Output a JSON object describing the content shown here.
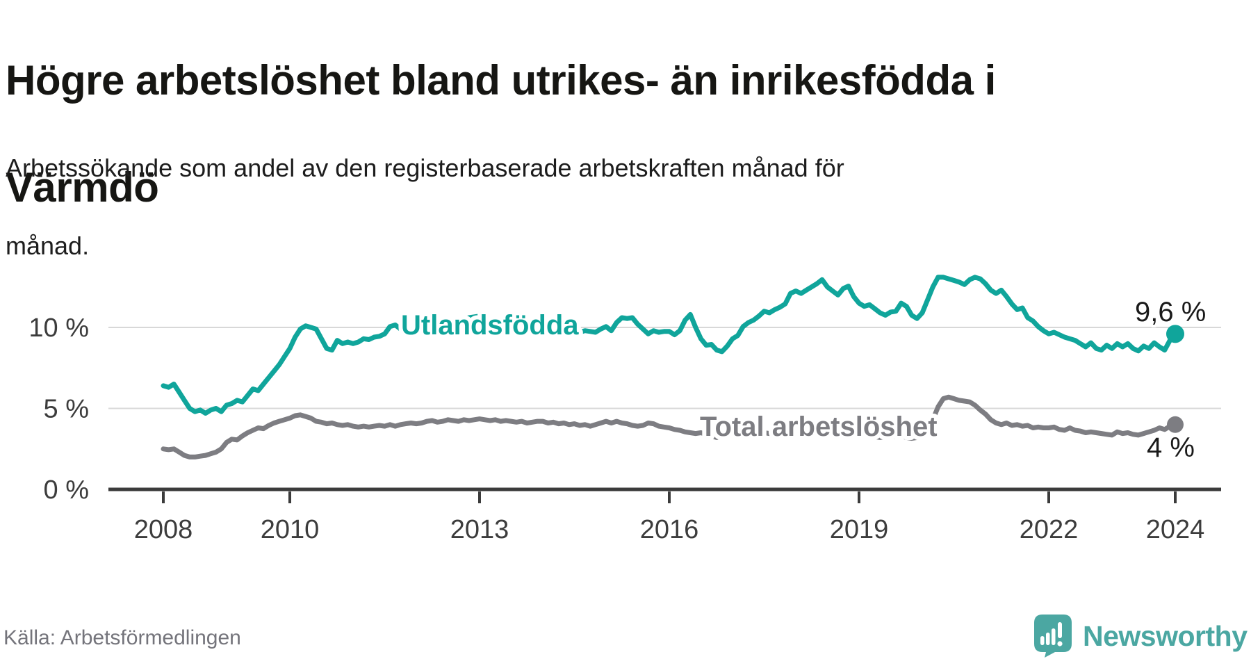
{
  "title": {
    "text": "Högre arbetslöshet bland utrikes- än inrikesfödda i Värmdö",
    "lines": [
      "Högre arbetslöshet bland utrikes- än inrikesfödda i",
      "Värmdö"
    ]
  },
  "subtitle": {
    "text": "Arbetssökande som andel av den registerbaserade arbetskraften månad för månad.",
    "lines": [
      "Arbetssökande som andel av den registerbaserade arbetskraften månad för",
      "månad."
    ]
  },
  "source": "Källa: Arbetsförmedlingen",
  "branding": {
    "icon": "newsworthy-speech-bubble-chart-icon",
    "wordmark": "Newsworthy",
    "brand_color": "#4BA7A2"
  },
  "colors": {
    "foreign_born_line": "#10A59B",
    "total_line": "#7d7d82",
    "grid": "#d8d8d8",
    "axis": "#3b3b3b",
    "end_label_text": "#1a1a1a"
  },
  "chart_data": {
    "type": "line",
    "frequency": "monthly",
    "x_start": "2008-01",
    "x_end": "2024-01",
    "grid": "horizontal",
    "x_tick_labels": [
      "2008",
      "2010",
      "2013",
      "2016",
      "2019",
      "2022",
      "2024"
    ],
    "x_tick_years": [
      2008,
      2010,
      2013,
      2016,
      2019,
      2022,
      2024
    ],
    "y_tick_labels": [
      "0 %",
      "5 %",
      "10 %"
    ],
    "y_tick_values": [
      0,
      5,
      10
    ],
    "ylim": [
      0,
      14.5
    ],
    "series": [
      {
        "name": "Utlandsfödda",
        "color": "#10A59B",
        "end_label": "9,6 %",
        "end_value": 9.6,
        "values": [
          6.4,
          6.3,
          6.5,
          6.0,
          5.5,
          5.0,
          4.8,
          4.9,
          4.7,
          4.9,
          5.0,
          4.8,
          5.2,
          5.3,
          5.5,
          5.4,
          5.8,
          6.2,
          6.1,
          6.5,
          6.9,
          7.3,
          7.7,
          8.2,
          8.7,
          9.4,
          9.9,
          10.1,
          10.0,
          9.9,
          9.3,
          8.7,
          8.6,
          9.2,
          9.0,
          9.1,
          9.0,
          9.1,
          9.3,
          9.25,
          9.4,
          9.45,
          9.6,
          10.05,
          10.15,
          9.9,
          9.6,
          9.7,
          9.8,
          9.9,
          9.7,
          9.9,
          10.0,
          10.1,
          10.0,
          10.2,
          10.4,
          10.5,
          10.6,
          10.65,
          10.7,
          10.6,
          10.5,
          10.4,
          10.3,
          10.4,
          10.2,
          10.1,
          10.2,
          10.0,
          10.1,
          10.0,
          10.1,
          10.0,
          9.9,
          10.0,
          9.8,
          9.9,
          9.8,
          9.7,
          9.8,
          9.75,
          9.7,
          9.9,
          10.05,
          9.8,
          10.3,
          10.6,
          10.55,
          10.6,
          10.2,
          9.9,
          9.6,
          9.8,
          9.7,
          9.75,
          9.75,
          9.55,
          9.8,
          10.45,
          10.8,
          10.0,
          9.3,
          8.9,
          8.95,
          8.6,
          8.5,
          8.85,
          9.3,
          9.5,
          10.05,
          10.3,
          10.45,
          10.7,
          11.0,
          10.9,
          11.1,
          11.25,
          11.45,
          12.1,
          12.25,
          12.1,
          12.3,
          12.5,
          12.7,
          12.95,
          12.5,
          12.25,
          12.0,
          12.4,
          12.55,
          11.9,
          11.5,
          11.3,
          11.4,
          11.15,
          10.9,
          10.75,
          10.95,
          11.0,
          11.5,
          11.3,
          10.75,
          10.55,
          10.9,
          11.7,
          12.5,
          13.1,
          13.1,
          13.0,
          12.9,
          12.8,
          12.65,
          12.95,
          13.1,
          13.0,
          12.7,
          12.3,
          12.1,
          12.3,
          11.9,
          11.45,
          11.1,
          11.2,
          10.6,
          10.4,
          10.05,
          9.8,
          9.6,
          9.7,
          9.55,
          9.4,
          9.3,
          9.2,
          9.0,
          8.8,
          9.05,
          8.7,
          8.6,
          8.9,
          8.7,
          9.0,
          8.8,
          9.0,
          8.7,
          8.55,
          8.85,
          8.7,
          9.05,
          8.8,
          8.6,
          9.2,
          9.6
        ]
      },
      {
        "name": "Total arbetslöshet",
        "color": "#7d7d82",
        "end_label": "4 %",
        "end_value": 4.0,
        "values": [
          2.5,
          2.45,
          2.5,
          2.3,
          2.1,
          2.0,
          2.0,
          2.05,
          2.1,
          2.2,
          2.3,
          2.5,
          2.9,
          3.1,
          3.05,
          3.3,
          3.5,
          3.65,
          3.8,
          3.75,
          3.95,
          4.1,
          4.2,
          4.3,
          4.4,
          4.55,
          4.6,
          4.5,
          4.4,
          4.2,
          4.15,
          4.05,
          4.1,
          4.0,
          3.95,
          4.0,
          3.9,
          3.85,
          3.9,
          3.85,
          3.9,
          3.95,
          3.9,
          4.0,
          3.9,
          4.0,
          4.05,
          4.1,
          4.05,
          4.1,
          4.2,
          4.25,
          4.15,
          4.2,
          4.3,
          4.25,
          4.2,
          4.3,
          4.25,
          4.3,
          4.35,
          4.3,
          4.25,
          4.3,
          4.2,
          4.25,
          4.2,
          4.15,
          4.2,
          4.1,
          4.15,
          4.2,
          4.2,
          4.1,
          4.15,
          4.05,
          4.1,
          4.0,
          4.05,
          3.95,
          4.0,
          3.9,
          4.0,
          4.1,
          4.2,
          4.1,
          4.2,
          4.1,
          4.05,
          3.95,
          3.9,
          3.95,
          4.1,
          4.05,
          3.9,
          3.85,
          3.8,
          3.7,
          3.65,
          3.55,
          3.5,
          3.45,
          3.5,
          3.4,
          3.3,
          3.2,
          3.35,
          3.4,
          3.45,
          3.4,
          3.5,
          3.45,
          3.5,
          3.55,
          3.5,
          3.45,
          3.5,
          3.55,
          3.6,
          3.55,
          3.5,
          3.55,
          3.6,
          3.55,
          3.5,
          3.45,
          3.4,
          3.35,
          3.3,
          3.35,
          3.4,
          3.35,
          3.3,
          3.35,
          3.3,
          3.25,
          3.2,
          3.25,
          3.3,
          3.25,
          3.3,
          3.2,
          3.15,
          3.2,
          3.3,
          3.6,
          4.3,
          5.1,
          5.6,
          5.7,
          5.6,
          5.5,
          5.45,
          5.4,
          5.2,
          4.9,
          4.65,
          4.3,
          4.1,
          4.0,
          4.1,
          3.95,
          4.0,
          3.9,
          3.95,
          3.8,
          3.85,
          3.8,
          3.8,
          3.85,
          3.7,
          3.65,
          3.8,
          3.65,
          3.6,
          3.5,
          3.55,
          3.5,
          3.45,
          3.4,
          3.35,
          3.55,
          3.45,
          3.5,
          3.4,
          3.35,
          3.45,
          3.55,
          3.65,
          3.8,
          3.7,
          3.9,
          4.0
        ]
      }
    ]
  }
}
